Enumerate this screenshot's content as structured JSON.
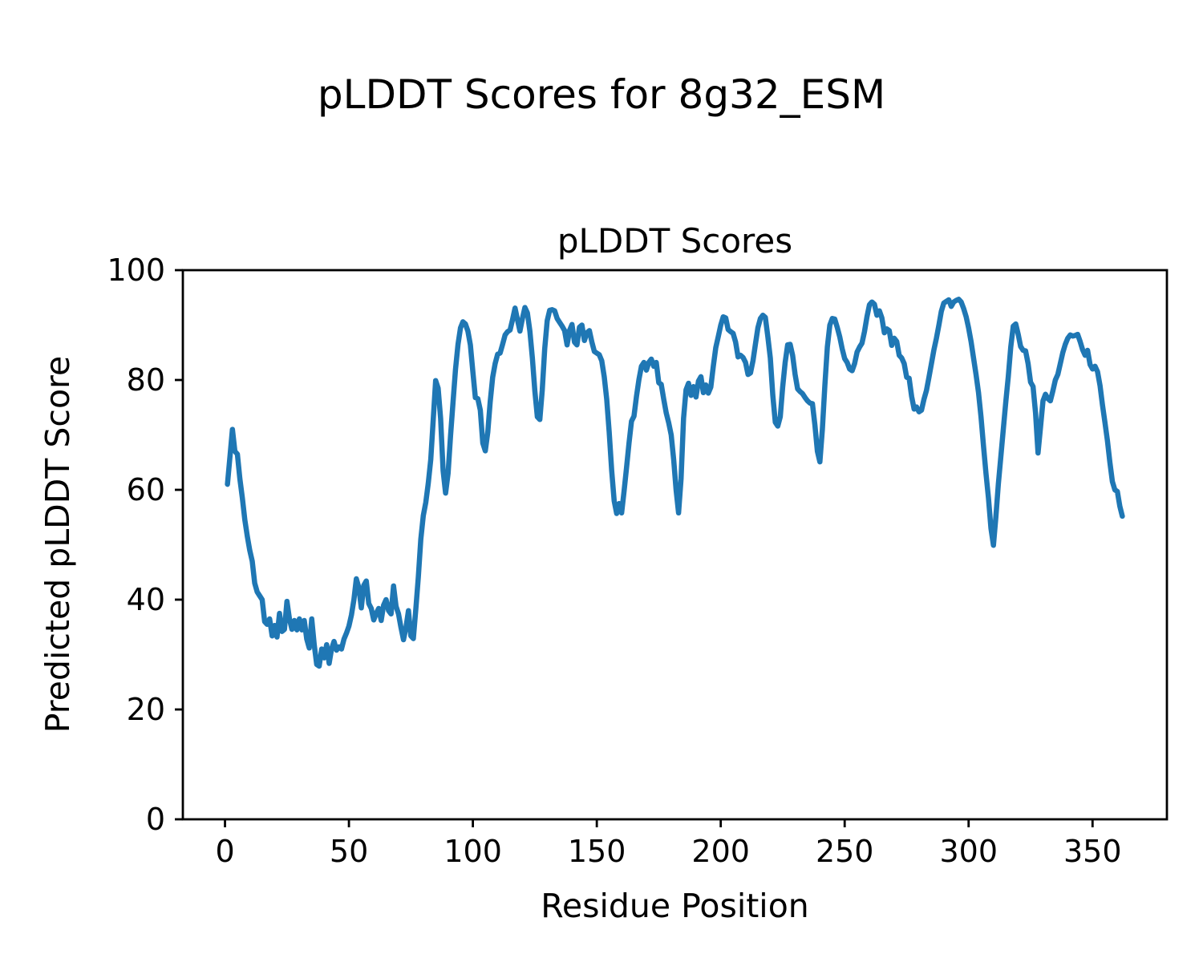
{
  "figure": {
    "suptitle": "pLDDT Scores for 8g32_ESM",
    "background": "#ffffff",
    "axis_color": "#000000"
  },
  "chart_data": {
    "type": "line",
    "title": "pLDDT Scores",
    "xlabel": "Residue Position",
    "ylabel": "Predicted pLDDT Score",
    "xlim": [
      -17,
      380
    ],
    "ylim": [
      0,
      100
    ],
    "x_ticks": [
      0,
      50,
      100,
      150,
      200,
      250,
      300,
      350
    ],
    "y_ticks": [
      0,
      20,
      40,
      60,
      80,
      100
    ],
    "grid": false,
    "legend_position": "none",
    "series": [
      {
        "name": "pLDDT",
        "color": "#1f77b4",
        "x_start": 1,
        "x_step": 1,
        "values": [
          61,
          66,
          71,
          67,
          66.5,
          62,
          58.5,
          54.5,
          51.5,
          49,
          47,
          43,
          41.4,
          40.7,
          40,
          36,
          35.5,
          36.5,
          33.4,
          35.3,
          33.2,
          37.5,
          34.2,
          34.6,
          39.7,
          36.5,
          34.6,
          36.2,
          34.5,
          36.5,
          34.5,
          36.2,
          32.8,
          31.2,
          36.5,
          31.8,
          28.2,
          27.9,
          31,
          29.4,
          31.8,
          28.4,
          31,
          32.4,
          30.8,
          31.4,
          31,
          32.8,
          33.9,
          35.2,
          37.2,
          40,
          43.8,
          42.2,
          38.5,
          42.6,
          43.4,
          39.3,
          38.4,
          36.3,
          37.5,
          38.4,
          36.2,
          39,
          40,
          38,
          37.4,
          42.5,
          38.8,
          37.4,
          34.9,
          32.7,
          34.9,
          38,
          33.4,
          32.9,
          38.3,
          44.1,
          51,
          55.3,
          57.7,
          61.2,
          65.5,
          72.8,
          79.9,
          78.5,
          73,
          63.5,
          59.4,
          63,
          69.9,
          76,
          82,
          86.5,
          89.5,
          90.6,
          90.2,
          88.9,
          86.4,
          81.5,
          76.8,
          76.6,
          74.5,
          68.5,
          67.1,
          70.5,
          76,
          80.5,
          83,
          84.7,
          84.9,
          86.5,
          88.2,
          88.8,
          89.1,
          91,
          93.1,
          91,
          88.9,
          91.2,
          93.2,
          92.2,
          88.9,
          84,
          78,
          73.3,
          72.8,
          78.1,
          85.7,
          90.8,
          92.7,
          92.8,
          92.6,
          91.2,
          90.5,
          89.8,
          89,
          86.4,
          89,
          90.1,
          86.9,
          86.4,
          89.6,
          90,
          87.2,
          88.6,
          89,
          86.9,
          85.2,
          84.9,
          84.6,
          83.5,
          80.6,
          76.5,
          70.5,
          63.5,
          58,
          55.7,
          57.5,
          55.8,
          59.7,
          64,
          68.5,
          72.5,
          73.4,
          77,
          80.1,
          82.5,
          83.2,
          81.8,
          83.2,
          83.8,
          82.5,
          83.2,
          79.5,
          79.2,
          76.5,
          74,
          72.2,
          70,
          65.5,
          60,
          55.8,
          62,
          73,
          78.2,
          79.4,
          77.2,
          78.8,
          76.9,
          79.8,
          80.6,
          77.7,
          79.1,
          77.6,
          78.7,
          82.5,
          85.9,
          87.9,
          90,
          91.5,
          91.3,
          89.2,
          88.8,
          88.5,
          86.9,
          84.2,
          84.5,
          84.1,
          83.2,
          81,
          81.3,
          83.5,
          86.5,
          89.5,
          91.2,
          91.8,
          91.4,
          87.9,
          84,
          77.2,
          72.3,
          71.6,
          73.3,
          78.7,
          83.2,
          86.4,
          86.5,
          84.5,
          81,
          78.4,
          77.9,
          77.5,
          76.8,
          76.2,
          75.8,
          75.7,
          71.8,
          67,
          65.1,
          71,
          79,
          86,
          90,
          91.2,
          91.1,
          89.6,
          87.9,
          85.7,
          83.9,
          83.2,
          82,
          81.7,
          83,
          85.1,
          86,
          86.7,
          88.8,
          91.5,
          93.7,
          94.2,
          93.8,
          91.8,
          92.6,
          91.3,
          88.6,
          89.3,
          89,
          86.3,
          87.6,
          87,
          84.5,
          84,
          83,
          80.5,
          80.3,
          77,
          74.7,
          75.1,
          74.2,
          74.5,
          76.5,
          78.1,
          80.5,
          83,
          85.5,
          87.6,
          90,
          92.5,
          94,
          94.3,
          94.6,
          93.4,
          94.2,
          94.5,
          94.7,
          94.2,
          93,
          91.5,
          89.5,
          87,
          84,
          81,
          77.7,
          73.3,
          68,
          63,
          58.5,
          53,
          49.9,
          55,
          61,
          66,
          71,
          76,
          80.6,
          86,
          89.8,
          90.2,
          88.3,
          86.1,
          85.4,
          85.3,
          83,
          79.6,
          78.8,
          74,
          66.7,
          71.4,
          76.2,
          77.4,
          76.6,
          76.2,
          78,
          80,
          81,
          83,
          85,
          86.5,
          87.6,
          88.2,
          88,
          88.1,
          88.3,
          87,
          85.5,
          84.5,
          85.4,
          82.8,
          82,
          82.5,
          81.5,
          79,
          75.5,
          72.3,
          69,
          65,
          61.5,
          60,
          59.7,
          57,
          55.2
        ]
      }
    ]
  }
}
